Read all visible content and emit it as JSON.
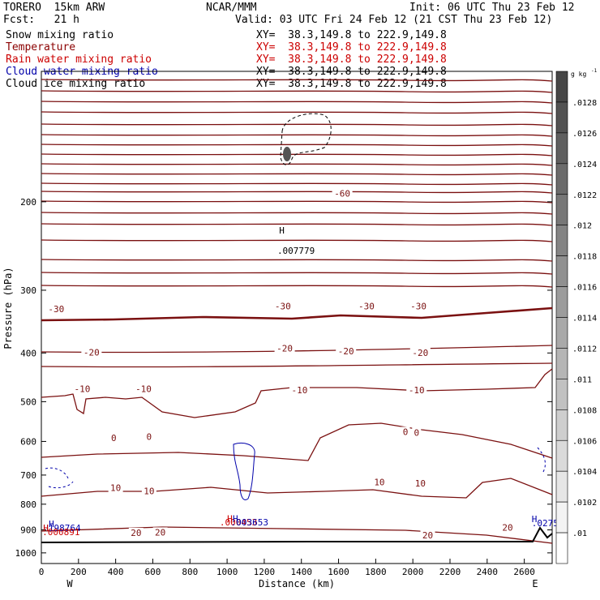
{
  "header": {
    "model": "TORERO  15km ARW",
    "org": "NCAR/MMM",
    "init": "Init: 06 UTC Thu 23 Feb 12",
    "fcst": "Fcst:   21 h",
    "valid": "Valid: 03 UTC Fri 24 Feb 12 (21 CST Thu 23 Feb 12)"
  },
  "fields": [
    {
      "name": "Snow mixing ratio",
      "xy": "XY=  38.3,149.8 to 222.9,149.8",
      "color": "#000000",
      "xy_color": "#000000"
    },
    {
      "name": "Temperature",
      "xy": "XY=  38.3,149.8 to 222.9,149.8",
      "color": "#8b0000",
      "xy_color": "#cc0000"
    },
    {
      "name": "Rain water mixing ratio",
      "xy": "XY=  38.3,149.8 to 222.9,149.8",
      "color": "#cc0000",
      "xy_color": "#cc0000"
    },
    {
      "name": "Cloud water mixing ratio",
      "xy": "XY=  38.3,149.8 to 222.9,149.8",
      "color": "#0000aa",
      "xy_color": "#000000"
    },
    {
      "name": "Cloud ice mixing ratio",
      "xy": "XY=  38.3,149.8 to 222.9,149.8",
      "color": "#000000",
      "xy_color": "#000000"
    }
  ],
  "chart_data": {
    "type": "contour cross-section",
    "ylabel": "Pressure (hPa)",
    "xlabel": "Distance (km)",
    "x_ticks": [
      "0",
      "200",
      "400",
      "600",
      "800",
      "1000",
      "1200",
      "1400",
      "1600",
      "1800",
      "2000",
      "2200",
      "2400",
      "2600"
    ],
    "y_ticks": [
      "200",
      "300",
      "400",
      "500",
      "600",
      "700",
      "800",
      "900",
      "1000"
    ],
    "xlim": [
      0,
      2750
    ],
    "ylim": [
      1050,
      110
    ],
    "y_scale": "log",
    "x_end_labels": {
      "left": "W",
      "right": "E"
    },
    "colorbar": {
      "unit": "g kg",
      "unit_exp": "-1",
      "ticks": [
        ".0128",
        ".0126",
        ".0124",
        ".0122",
        ".012",
        ".0118",
        ".0116",
        ".0114",
        ".0112",
        ".011",
        ".0108",
        ".0106",
        ".0104",
        ".0102",
        ".01"
      ]
    },
    "temperature_labels": [
      {
        "text": "-60",
        "x": 1620,
        "p": 193
      },
      {
        "text": "-30",
        "x": 80,
        "p": 328
      },
      {
        "text": "-30",
        "x": 1300,
        "p": 324
      },
      {
        "text": "-30",
        "x": 1750,
        "p": 324
      },
      {
        "text": "-30",
        "x": 2030,
        "p": 324
      },
      {
        "text": "-20",
        "x": 270,
        "p": 400
      },
      {
        "text": "-20",
        "x": 1310,
        "p": 393
      },
      {
        "text": "-20",
        "x": 1640,
        "p": 398
      },
      {
        "text": "-20",
        "x": 2040,
        "p": 401
      },
      {
        "text": "-10",
        "x": 220,
        "p": 473
      },
      {
        "text": "-10",
        "x": 550,
        "p": 473
      },
      {
        "text": "-10",
        "x": 1390,
        "p": 476
      },
      {
        "text": "-10",
        "x": 2020,
        "p": 476
      },
      {
        "text": "0",
        "x": 390,
        "p": 592
      },
      {
        "text": "0",
        "x": 580,
        "p": 589
      },
      {
        "text": "0",
        "x": 1960,
        "p": 576
      },
      {
        "text": "0",
        "x": 2020,
        "p": 578
      },
      {
        "text": "10",
        "x": 400,
        "p": 745
      },
      {
        "text": "10",
        "x": 580,
        "p": 756
      },
      {
        "text": "10",
        "x": 1820,
        "p": 726
      },
      {
        "text": "10",
        "x": 2040,
        "p": 729
      },
      {
        "text": "20",
        "x": 510,
        "p": 915
      },
      {
        "text": "20",
        "x": 640,
        "p": 913
      },
      {
        "text": "20",
        "x": 2080,
        "p": 925
      },
      {
        "text": "20",
        "x": 2510,
        "p": 893
      }
    ],
    "extrema_labels": [
      {
        "text": "H",
        "x": 1280,
        "p": 228,
        "color": "#000000"
      },
      {
        "text": ".007779",
        "x": 1270,
        "p": 250,
        "color": "#000000"
      },
      {
        "text": "H",
        "x": 1000,
        "p": 855,
        "color": "#cc0000"
      },
      {
        "text": ".000453",
        "x": 960,
        "p": 869,
        "color": "#cc0000"
      },
      {
        "text": "H",
        "x": 1030,
        "p": 855,
        "color": "#0000aa"
      },
      {
        "text": ".003653",
        "x": 1020,
        "p": 869,
        "color": "#0000aa"
      },
      {
        "text": "H",
        "x": 40,
        "p": 875,
        "color": "#0000aa"
      },
      {
        "text": "H198764",
        "x": 10,
        "p": 892,
        "color": "#0000aa"
      },
      {
        "text": "H",
        "x": 10,
        "p": 892,
        "color": "#cc0000"
      },
      {
        "text": ".000891",
        "x": 5,
        "p": 909,
        "color": "#cc0000"
      },
      {
        "text": "H",
        "x": 2640,
        "p": 856,
        "color": "#0000aa"
      },
      {
        "text": ".02751",
        "x": 2640,
        "p": 872,
        "color": "#0000aa"
      }
    ]
  }
}
